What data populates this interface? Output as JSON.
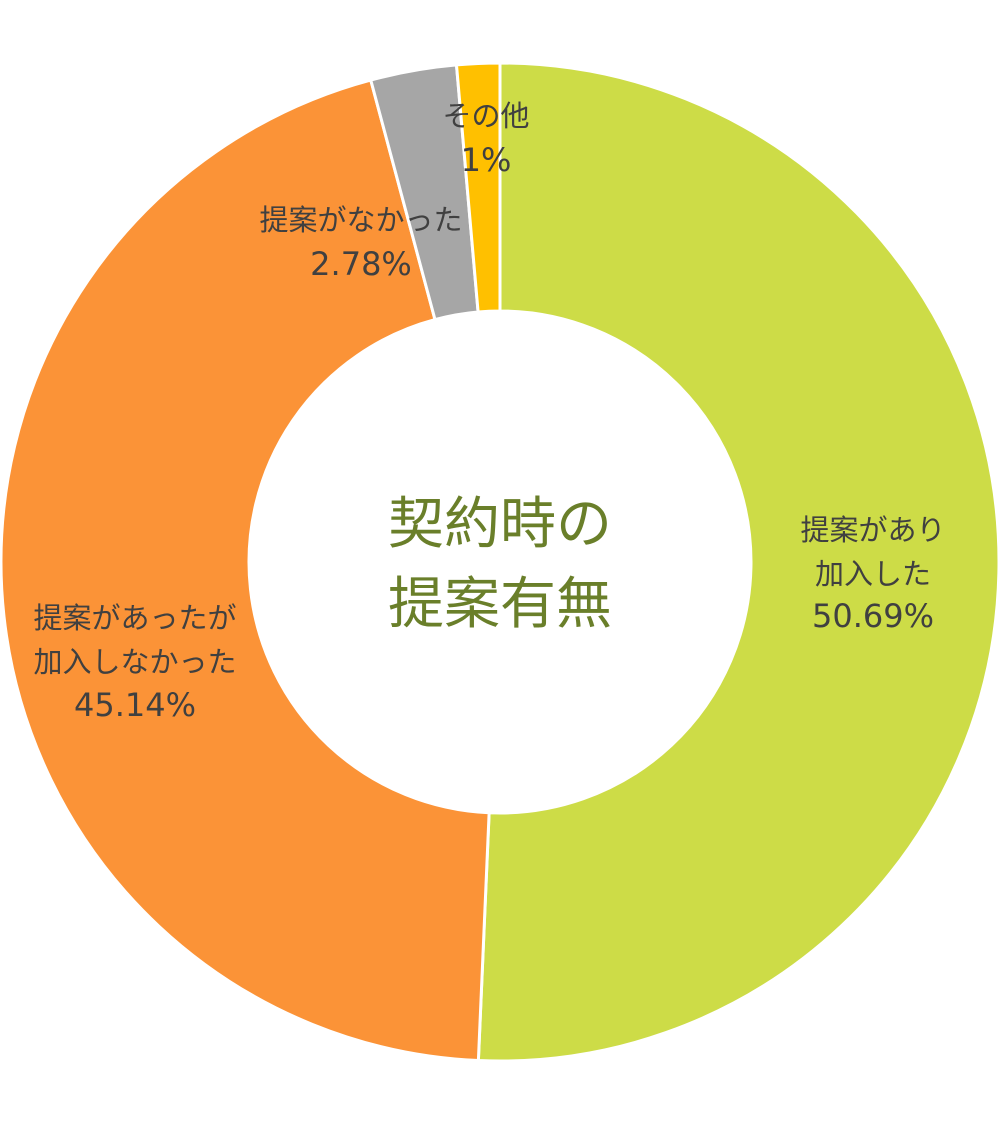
{
  "chart_data": {
    "type": "pie",
    "variant": "donut",
    "title": "契約時の提案有無",
    "title_lines": [
      "契約時の",
      "提案有無"
    ],
    "slices": [
      {
        "label_lines": [
          "提案があり",
          "加入した"
        ],
        "value": 50.69,
        "value_label": "50.69%",
        "color": "#cddc47"
      },
      {
        "label_lines": [
          "提案があったが",
          "加入しなかった"
        ],
        "value": 45.14,
        "value_label": "45.14%",
        "color": "#fb9337"
      },
      {
        "label_lines": [
          "提案がなかった"
        ],
        "value": 2.78,
        "value_label": "2.78%",
        "color": "#a6a6a6"
      },
      {
        "label_lines": [
          "その他"
        ],
        "value": 1.39,
        "value_label": "1%",
        "color": "#ffc000"
      }
    ],
    "title_color": "#6a7f2a",
    "label_color": "#404040",
    "background": "#ffffff",
    "legend": "none"
  }
}
